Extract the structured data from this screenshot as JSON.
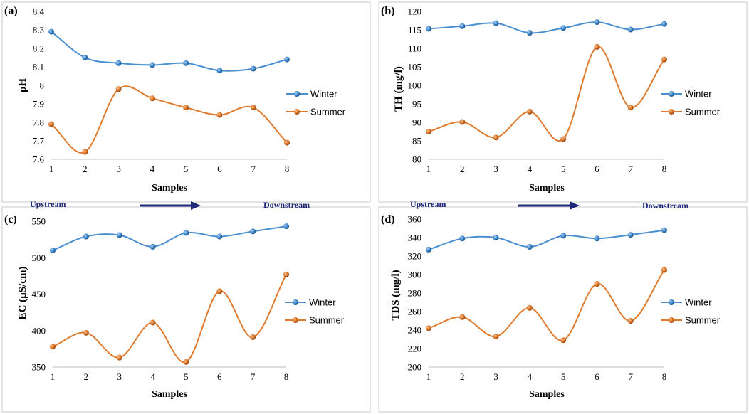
{
  "colors": {
    "winter": "#4a8fd0",
    "summer": "#e07a2c",
    "frame": "#c8c8c8",
    "arrow": "#1f2a7a"
  },
  "flow": {
    "upstream": "Upstream",
    "downstream": "Downstream"
  },
  "chart_data": [
    {
      "type": "line",
      "panel": "(a)",
      "xlabel": "Samples",
      "ylabel": "pH",
      "x": [
        1,
        2,
        3,
        4,
        5,
        6,
        7,
        8
      ],
      "ylim": [
        7.6,
        8.4
      ],
      "yticks": [
        7.6,
        7.7,
        7.8,
        7.9,
        8,
        8.1,
        8.2,
        8.3,
        8.4
      ],
      "series": [
        {
          "name": "Winter",
          "values": [
            8.29,
            8.15,
            8.12,
            8.11,
            8.12,
            8.08,
            8.09,
            8.14
          ]
        },
        {
          "name": "Summer",
          "values": [
            7.79,
            7.64,
            7.98,
            7.93,
            7.88,
            7.84,
            7.88,
            7.69
          ]
        }
      ],
      "legend": "right"
    },
    {
      "type": "line",
      "panel": "(b)",
      "xlabel": "Samples",
      "ylabel": "TH (mg/l)",
      "x": [
        1,
        2,
        3,
        4,
        5,
        6,
        7,
        8
      ],
      "ylim": [
        80,
        120
      ],
      "yticks": [
        80,
        85,
        90,
        95,
        100,
        105,
        110,
        115,
        120
      ],
      "series": [
        {
          "name": "Winter",
          "values": [
            115.3,
            116,
            116.8,
            114.2,
            115.5,
            117.1,
            115.1,
            116.6
          ]
        },
        {
          "name": "Summer",
          "values": [
            87.5,
            90.1,
            85.9,
            92.9,
            85.5,
            110.4,
            94,
            107
          ]
        }
      ],
      "legend": "right"
    },
    {
      "type": "line",
      "panel": "(c)",
      "xlabel": "Samples",
      "ylabel": "EC (µS/cm)",
      "x": [
        1,
        2,
        3,
        4,
        5,
        6,
        7,
        8
      ],
      "ylim": [
        350,
        550
      ],
      "yticks": [
        350,
        400,
        450,
        500,
        550
      ],
      "series": [
        {
          "name": "Winter",
          "values": [
            510,
            529,
            531,
            515,
            534,
            529,
            536,
            543
          ]
        },
        {
          "name": "Summer",
          "values": [
            378,
            397,
            363,
            411,
            357,
            454,
            391,
            477
          ]
        }
      ],
      "legend": "right"
    },
    {
      "type": "line",
      "panel": "(d)",
      "xlabel": "Samples",
      "ylabel": "TDS (mg/l)",
      "x": [
        1,
        2,
        3,
        4,
        5,
        6,
        7,
        8
      ],
      "ylim": [
        200,
        360
      ],
      "yticks": [
        200,
        220,
        240,
        260,
        280,
        300,
        320,
        340,
        360
      ],
      "series": [
        {
          "name": "Winter",
          "values": [
            327,
            339,
            340,
            330,
            342,
            339,
            343,
            348
          ]
        },
        {
          "name": "Summer",
          "values": [
            242,
            254,
            233,
            264,
            229,
            290,
            250,
            305
          ]
        }
      ],
      "legend": "right"
    }
  ]
}
